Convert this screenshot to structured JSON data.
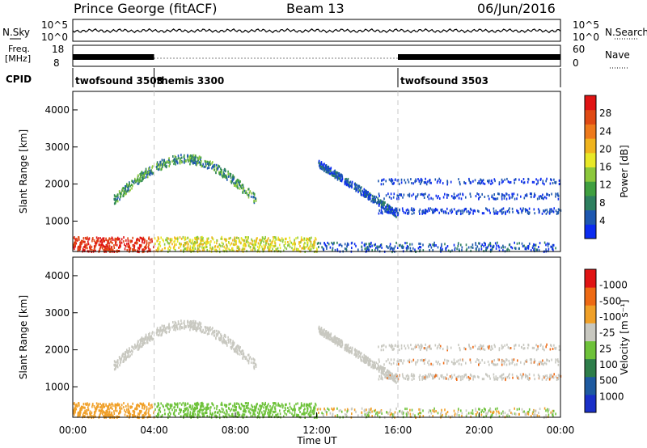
{
  "header": {
    "station": "Prince George (fitACF)",
    "beam": "Beam 13",
    "date": "06/Jun/2016"
  },
  "side_labels": {
    "nsky": "N.Sky",
    "nsearch": "N.Search",
    "freq_line1": "Freq.",
    "freq_line2": "[MHz]",
    "nave": "Nave",
    "cpid": "CPID"
  },
  "chart_data": [
    {
      "type": "line",
      "name": "noise-panel",
      "left_axis": {
        "label": "N.Sky",
        "ticks": [
          "10^5",
          "10^0"
        ]
      },
      "right_axis": {
        "label": "N.Search",
        "ticks": [
          "10^5",
          "10^0"
        ]
      }
    },
    {
      "type": "line",
      "name": "frequency-panel",
      "left_axis": {
        "label": "Freq. [MHz]",
        "ticks": [
          "18",
          "8"
        ]
      },
      "right_axis": {
        "label": "Nave",
        "ticks": [
          "60",
          "0"
        ]
      },
      "segments": [
        {
          "start_h": 0,
          "end_h": 4,
          "active": true
        },
        {
          "start_h": 4,
          "end_h": 16,
          "active": false
        },
        {
          "start_h": 16,
          "end_h": 24,
          "active": true
        }
      ]
    },
    {
      "type": "table",
      "name": "cpid-bar",
      "modes": [
        {
          "label": "twofsound 3503",
          "start_h": 0
        },
        {
          "label": "themis 3300",
          "start_h": 4
        },
        {
          "label": "twofsound 3503",
          "start_h": 16
        }
      ]
    },
    {
      "type": "heatmap",
      "name": "power-panel",
      "ylabel": "Slant Range [km]",
      "ylim": [
        180,
        4500
      ],
      "yticks": [
        1000,
        2000,
        3000,
        4000
      ],
      "xlim": [
        0,
        24
      ],
      "colorbar": {
        "label": "Power [dB]",
        "ticks": [
          4,
          8,
          12,
          16,
          20,
          24,
          28
        ],
        "colors": [
          "#0c2cf0",
          "#1e58b0",
          "#2e8060",
          "#40a040",
          "#8cc83c",
          "#e8e828",
          "#f0b41e",
          "#ee7a1c",
          "#e04a14",
          "#e01414"
        ]
      }
    },
    {
      "type": "heatmap",
      "name": "velocity-panel",
      "ylabel": "Slant Range [km]",
      "ylim": [
        180,
        4500
      ],
      "yticks": [
        1000,
        2000,
        3000,
        4000
      ],
      "xlim": [
        0,
        24
      ],
      "xlabel": "Time UT",
      "xticks": [
        "00:00",
        "04:00",
        "08:00",
        "12:00",
        "16:00",
        "20:00",
        "00:00"
      ],
      "colorbar": {
        "label": "Velocity [m s⁻¹]",
        "ticks": [
          "1000",
          "500",
          "100",
          "25",
          "-25",
          "-100",
          "-500",
          "-1000"
        ],
        "colors": [
          "#1a30c8",
          "#1e5aa0",
          "#2e7e4a",
          "#6ec23a",
          "#c8c8c0",
          "#f0a028",
          "#ee6a14",
          "#e01414"
        ]
      }
    }
  ]
}
